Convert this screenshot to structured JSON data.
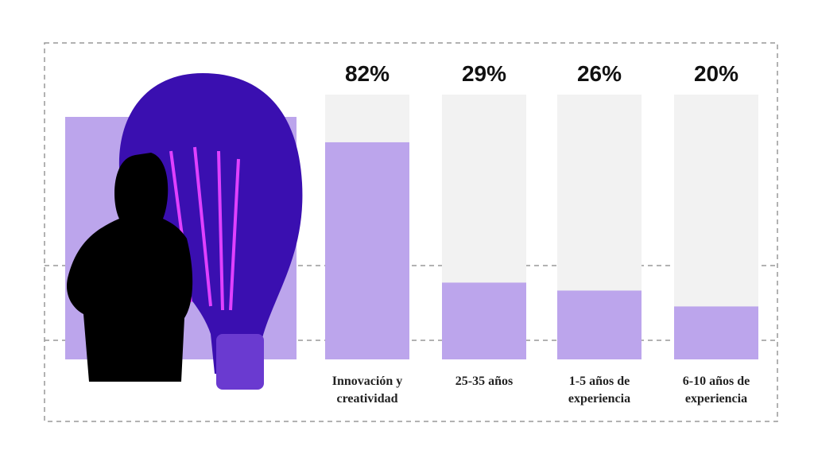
{
  "chart_data": {
    "type": "bar",
    "categories": [
      "Innovación y creatividad",
      "25-35 años",
      "1-5 años de experiencia",
      "6-10 años de experiencia"
    ],
    "values": [
      82,
      29,
      26,
      20
    ],
    "value_labels": [
      "82%",
      "29%",
      "26%",
      "20%"
    ],
    "color": "#bca5ec",
    "ylim": [
      0,
      100
    ]
  }
}
